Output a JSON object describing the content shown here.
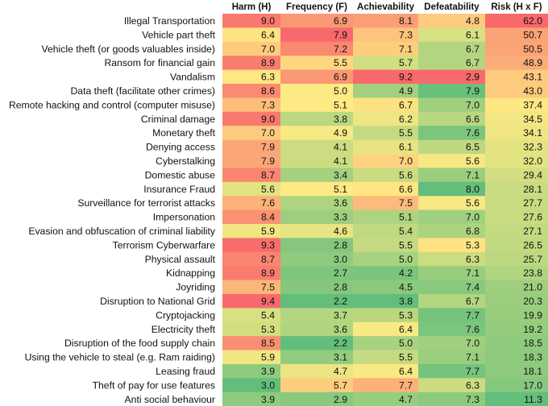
{
  "chart_data": {
    "type": "heatmap",
    "columns": [
      "Harm (H)",
      "Frequency (F)",
      "Achievability",
      "Defeatability",
      "Risk (H x F)"
    ],
    "rows": [
      {
        "label": "Illegal Transportation",
        "values": [
          9.0,
          6.9,
          8.1,
          4.8,
          62.0
        ]
      },
      {
        "label": "Vehicle part theft",
        "values": [
          6.4,
          7.9,
          7.3,
          6.1,
          50.7
        ]
      },
      {
        "label": "Vehicle theft (or goods valuables inside)",
        "values": [
          7.0,
          7.2,
          7.1,
          6.7,
          50.5
        ]
      },
      {
        "label": "Ransom for financial gain",
        "values": [
          8.9,
          5.5,
          5.7,
          6.7,
          48.9
        ]
      },
      {
        "label": "Vandalism",
        "values": [
          6.3,
          6.9,
          9.2,
          2.9,
          43.1
        ]
      },
      {
        "label": "Data theft  (facilitate other crimes)",
        "values": [
          8.6,
          5.0,
          4.9,
          7.9,
          43.0
        ]
      },
      {
        "label": "Remote hacking and control (computer misuse)",
        "values": [
          7.3,
          5.1,
          6.7,
          7.0,
          37.4
        ]
      },
      {
        "label": "Criminal damage",
        "values": [
          9.0,
          3.8,
          6.2,
          6.6,
          34.5
        ]
      },
      {
        "label": "Monetary theft",
        "values": [
          7.0,
          4.9,
          5.5,
          7.6,
          34.1
        ]
      },
      {
        "label": "Denying access",
        "values": [
          7.9,
          4.1,
          6.1,
          6.5,
          32.3
        ]
      },
      {
        "label": "Cyberstalking",
        "values": [
          7.9,
          4.1,
          7.0,
          5.6,
          32.0
        ]
      },
      {
        "label": "Domestic abuse",
        "values": [
          8.7,
          3.4,
          5.6,
          7.1,
          29.4
        ]
      },
      {
        "label": "Insurance Fraud",
        "values": [
          5.6,
          5.1,
          6.6,
          8.0,
          28.1
        ]
      },
      {
        "label": "Surveillance for terrorist attacks",
        "values": [
          7.6,
          3.6,
          7.5,
          5.6,
          27.7
        ]
      },
      {
        "label": "Impersonation",
        "values": [
          8.4,
          3.3,
          5.1,
          7.0,
          27.6
        ]
      },
      {
        "label": "Evasion and obfuscation of criminal liability",
        "values": [
          5.9,
          4.6,
          5.4,
          6.8,
          27.1
        ]
      },
      {
        "label": "Terrorism Cyberwarfare",
        "values": [
          9.3,
          2.8,
          5.5,
          5.3,
          26.5
        ]
      },
      {
        "label": "Physical assault",
        "values": [
          8.7,
          3.0,
          5.0,
          6.3,
          25.7
        ]
      },
      {
        "label": "Kidnapping",
        "values": [
          8.9,
          2.7,
          4.2,
          7.1,
          23.8
        ]
      },
      {
        "label": "Joyriding",
        "values": [
          7.5,
          2.8,
          4.5,
          7.4,
          21.0
        ]
      },
      {
        "label": "Disruption to National Grid",
        "values": [
          9.4,
          2.2,
          3.8,
          6.7,
          20.3
        ]
      },
      {
        "label": "Cryptojacking",
        "values": [
          5.4,
          3.7,
          5.3,
          7.7,
          19.9
        ]
      },
      {
        "label": "Electricity theft",
        "values": [
          5.3,
          3.6,
          6.4,
          7.6,
          19.2
        ]
      },
      {
        "label": "Disruption of the food supply chain",
        "values": [
          8.5,
          2.2,
          5.0,
          7.0,
          18.5
        ]
      },
      {
        "label": "Using the vehicle to steal (e.g. Ram raiding)",
        "values": [
          5.9,
          3.1,
          5.5,
          7.1,
          18.3
        ]
      },
      {
        "label": "Leasing fraud",
        "values": [
          3.9,
          4.7,
          6.4,
          7.7,
          18.1
        ]
      },
      {
        "label": "Theft of pay for use features",
        "values": [
          3.0,
          5.7,
          7.7,
          6.3,
          17.0
        ]
      },
      {
        "label": "Anti social behaviour",
        "values": [
          3.9,
          2.9,
          4.7,
          7.3,
          11.3
        ]
      }
    ],
    "color_direction": [
      "high-red",
      "high-red",
      "high-red",
      "high-green",
      "high-red"
    ],
    "colors": {
      "low": "#63be7b",
      "mid": "#ffeb84",
      "high": "#f8696b"
    }
  }
}
